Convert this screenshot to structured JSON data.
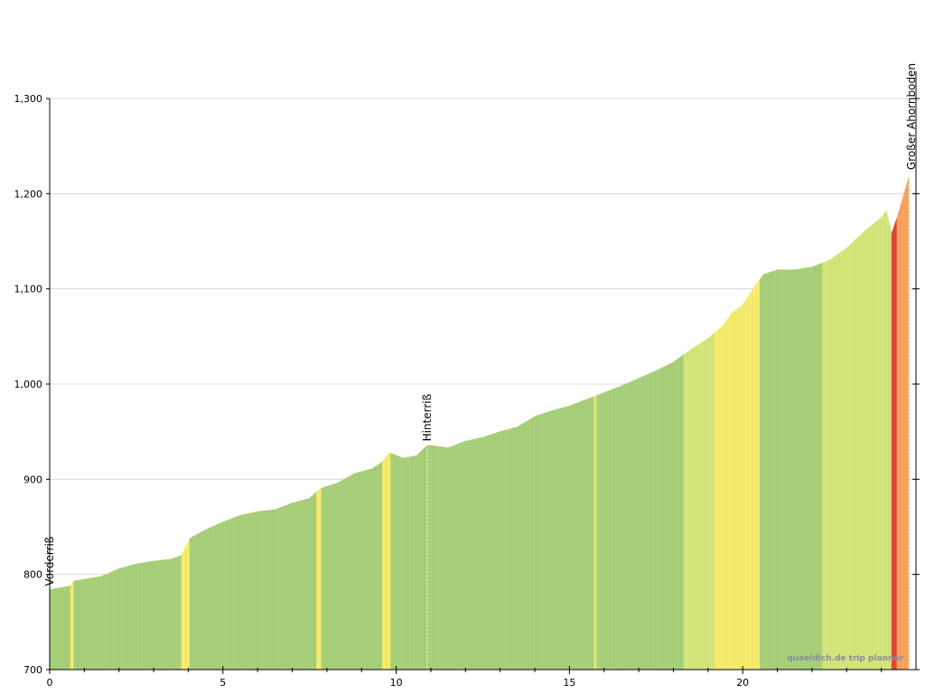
{
  "chart_data": {
    "type": "area",
    "xlim": [
      0,
      25
    ],
    "ylim": [
      700,
      1300
    ],
    "x_ticks": [
      0,
      5,
      10,
      15,
      20
    ],
    "y_ticks": [
      700,
      800,
      900,
      1000,
      1100,
      1200,
      1300
    ],
    "x_tick_labels": [
      "0",
      "5",
      "10",
      "15",
      "20"
    ],
    "y_tick_labels": [
      "700",
      "800",
      "900",
      "1,000",
      "1,100",
      "1,200",
      "1,300"
    ],
    "grid": true,
    "profile": [
      {
        "x": 0,
        "y": 784
      },
      {
        "x": 0.6,
        "y": 788
      },
      {
        "x": 0.7,
        "y": 793
      },
      {
        "x": 1,
        "y": 795
      },
      {
        "x": 1.5,
        "y": 798
      },
      {
        "x": 2,
        "y": 806
      },
      {
        "x": 2.5,
        "y": 811
      },
      {
        "x": 3,
        "y": 814
      },
      {
        "x": 3.5,
        "y": 816
      },
      {
        "x": 3.8,
        "y": 820
      },
      {
        "x": 4.05,
        "y": 838
      },
      {
        "x": 4.5,
        "y": 847
      },
      {
        "x": 5,
        "y": 855
      },
      {
        "x": 5.5,
        "y": 862
      },
      {
        "x": 6,
        "y": 866
      },
      {
        "x": 6.5,
        "y": 868
      },
      {
        "x": 7,
        "y": 875
      },
      {
        "x": 7.5,
        "y": 880
      },
      {
        "x": 7.8,
        "y": 890
      },
      {
        "x": 8.3,
        "y": 896
      },
      {
        "x": 8.8,
        "y": 906
      },
      {
        "x": 9.3,
        "y": 911
      },
      {
        "x": 9.6,
        "y": 918
      },
      {
        "x": 9.8,
        "y": 928
      },
      {
        "x": 10.2,
        "y": 922
      },
      {
        "x": 10.6,
        "y": 925
      },
      {
        "x": 10.9,
        "y": 936
      },
      {
        "x": 11.5,
        "y": 933
      },
      {
        "x": 12,
        "y": 940
      },
      {
        "x": 12.5,
        "y": 944
      },
      {
        "x": 13,
        "y": 950
      },
      {
        "x": 13.5,
        "y": 955
      },
      {
        "x": 14,
        "y": 966
      },
      {
        "x": 14.5,
        "y": 972
      },
      {
        "x": 15,
        "y": 977
      },
      {
        "x": 15.5,
        "y": 984
      },
      {
        "x": 16,
        "y": 991
      },
      {
        "x": 16.5,
        "y": 998
      },
      {
        "x": 17,
        "y": 1006
      },
      {
        "x": 17.5,
        "y": 1014
      },
      {
        "x": 18,
        "y": 1023
      },
      {
        "x": 18.5,
        "y": 1036
      },
      {
        "x": 19,
        "y": 1048
      },
      {
        "x": 19.4,
        "y": 1060
      },
      {
        "x": 19.7,
        "y": 1075
      },
      {
        "x": 20,
        "y": 1083
      },
      {
        "x": 20.3,
        "y": 1100
      },
      {
        "x": 20.6,
        "y": 1115
      },
      {
        "x": 21,
        "y": 1120
      },
      {
        "x": 21.5,
        "y": 1120
      },
      {
        "x": 22,
        "y": 1123
      },
      {
        "x": 22.5,
        "y": 1130
      },
      {
        "x": 23,
        "y": 1143
      },
      {
        "x": 23.5,
        "y": 1160
      },
      {
        "x": 24,
        "y": 1175
      },
      {
        "x": 24.15,
        "y": 1182
      },
      {
        "x": 24.3,
        "y": 1158
      },
      {
        "x": 24.5,
        "y": 1180
      },
      {
        "x": 24.8,
        "y": 1218
      }
    ],
    "gradient_bands": [
      {
        "from": 0,
        "to": 0.6,
        "class": "green"
      },
      {
        "from": 0.6,
        "to": 0.7,
        "class": "yellow"
      },
      {
        "from": 0.7,
        "to": 3.8,
        "class": "green"
      },
      {
        "from": 3.8,
        "to": 4.05,
        "class": "yellow"
      },
      {
        "from": 4.05,
        "to": 7.7,
        "class": "green"
      },
      {
        "from": 7.7,
        "to": 7.85,
        "class": "yellow"
      },
      {
        "from": 7.85,
        "to": 9.6,
        "class": "green"
      },
      {
        "from": 9.6,
        "to": 9.85,
        "class": "yellow"
      },
      {
        "from": 9.85,
        "to": 15.7,
        "class": "green"
      },
      {
        "from": 15.7,
        "to": 15.8,
        "class": "yellow-green"
      },
      {
        "from": 15.8,
        "to": 18.3,
        "class": "green"
      },
      {
        "from": 18.3,
        "to": 19.2,
        "class": "yellow-green"
      },
      {
        "from": 19.2,
        "to": 20.5,
        "class": "yellow"
      },
      {
        "from": 20.5,
        "to": 22.3,
        "class": "green"
      },
      {
        "from": 22.3,
        "to": 24.3,
        "class": "yellow-green"
      },
      {
        "from": 24.3,
        "to": 24.45,
        "class": "red"
      },
      {
        "from": 24.45,
        "to": 24.8,
        "class": "orange"
      }
    ],
    "band_colors": {
      "green": "#a8d07a",
      "yellow-green": "#d4e67a",
      "yellow": "#f5ec6e",
      "orange": "#f7a35c",
      "red": "#e0453a"
    },
    "waypoints": [
      {
        "x": 0,
        "name": "Vorderriß"
      },
      {
        "x": 10.9,
        "name": "Hinterriß"
      },
      {
        "x": 24.8,
        "name": "Großer Ahornboden"
      }
    ],
    "watermark": "quaeldich.de trip planner"
  }
}
